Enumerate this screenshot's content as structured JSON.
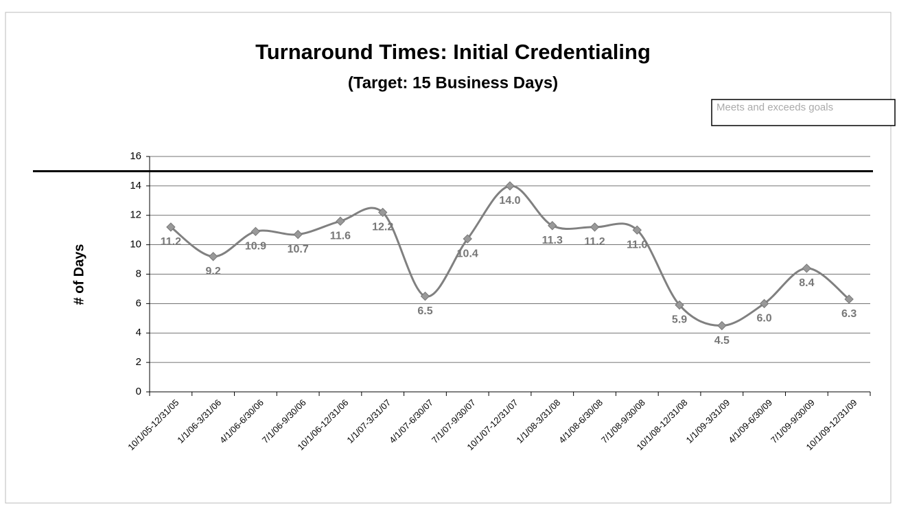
{
  "chart_data": {
    "type": "line",
    "title": "Turnaround Times:  Initial Credentialing",
    "subtitle": "(Target:  15 Business Days)",
    "y_label": "# of Days",
    "annotation": "Meets and exceeds goals",
    "target_line": 15,
    "categories": [
      "10/1/05-12/31/05",
      "1/1/06-3/31/06",
      "4/1/06-6/30/06",
      "7/1/06-9/30/06",
      "10/1/06-12/31/06",
      "1/1/07-3/31/07",
      "4/1/07-6/30/07",
      "7/1/07-9/30/07",
      "10/1/07-12/31/07",
      "1/1/08-3/31/08",
      "4/1/08-6/30/08",
      "7/1/08-9/30/08",
      "10/1/08-12/31/08",
      "1/1/09-3/31/09",
      "4/1/09-6/30/09",
      "7/1/09-9/30/09",
      "10/1/09-12/31/09"
    ],
    "values": [
      11.2,
      9.2,
      10.9,
      10.7,
      11.6,
      12.2,
      6.5,
      10.4,
      14.0,
      11.3,
      11.2,
      11.0,
      5.9,
      4.5,
      6.0,
      8.4,
      6.3
    ],
    "value_labels": [
      "11.2",
      "9.2",
      "10.9",
      "10.7",
      "11.6",
      "12.2",
      "6.5",
      "10.4",
      "14.0",
      "11.3",
      "11.2",
      "11.0",
      "5.9",
      "4.5",
      "6.0",
      "8.4",
      "6.3"
    ],
    "color": "#808080",
    "ylim": [
      0,
      16
    ],
    "yticks": [
      0,
      2,
      4,
      6,
      8,
      10,
      12,
      14,
      16
    ],
    "grid": true
  }
}
